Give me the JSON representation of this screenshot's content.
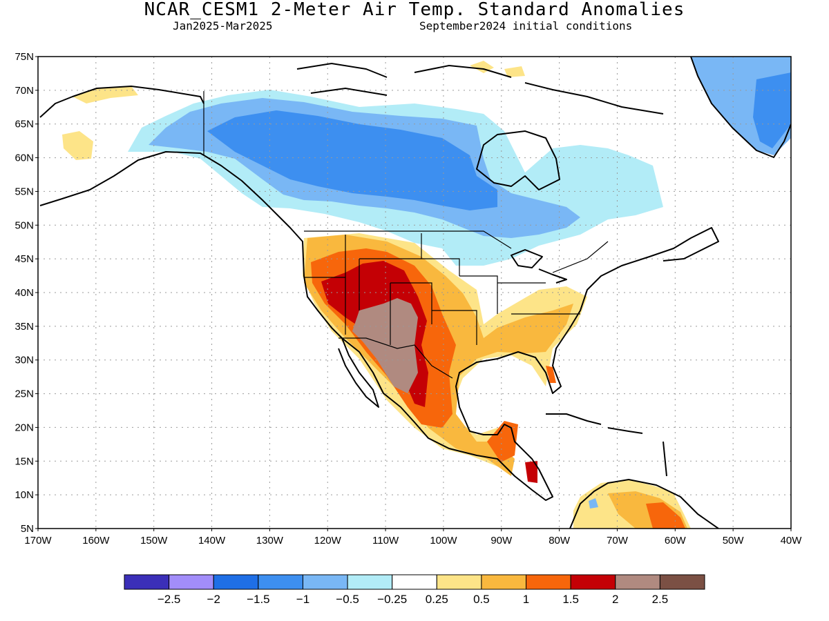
{
  "title": "NCAR_CESM1 2-Meter Air Temp. Standard Anomalies",
  "subtitle_left": "Jan2025-Mar2025",
  "subtitle_right": "September2024 initial conditions",
  "lat_labels": [
    "75N",
    "70N",
    "65N",
    "60N",
    "55N",
    "50N",
    "45N",
    "40N",
    "35N",
    "30N",
    "25N",
    "20N",
    "15N",
    "10N",
    "5N"
  ],
  "lon_labels": [
    "170W",
    "160W",
    "150W",
    "140W",
    "130W",
    "120W",
    "110W",
    "100W",
    "90W",
    "80W",
    "70W",
    "60W",
    "50W",
    "40W"
  ],
  "colorbar": {
    "colors": [
      "#3b2fb8",
      "#a28dfa",
      "#1f6fe6",
      "#3d8ff0",
      "#79b7f5",
      "#b2ecf7",
      "#ffffff",
      "#fde488",
      "#f9b83e",
      "#f7660b",
      "#c40005",
      "#b08a80",
      "#7b5044"
    ],
    "labels": [
      "-2.5",
      "-2",
      "-1.5",
      "-1",
      "-0.5",
      "-0.25",
      "0.25",
      "0.5",
      "1",
      "1.5",
      "2",
      "2.5"
    ]
  },
  "anomaly_regions": [
    {
      "name": "Greenland",
      "level": -1.5
    },
    {
      "name": "Western and central Canada",
      "level": -1.5
    },
    {
      "name": "Eastern Canada / Hudson Bay",
      "level": -0.5
    },
    {
      "name": "Alaska",
      "level": 0.25
    },
    {
      "name": "Southwestern US / northern Mexico",
      "level": 2.5
    },
    {
      "name": "Rocky Mountains / western High Plains",
      "level": 2
    },
    {
      "name": "Southern Plains / Texas",
      "level": 1
    },
    {
      "name": "Southeastern US",
      "level": 0.5
    },
    {
      "name": "Central America",
      "level": 1.5
    },
    {
      "name": "Northern South America",
      "level": 1
    }
  ]
}
